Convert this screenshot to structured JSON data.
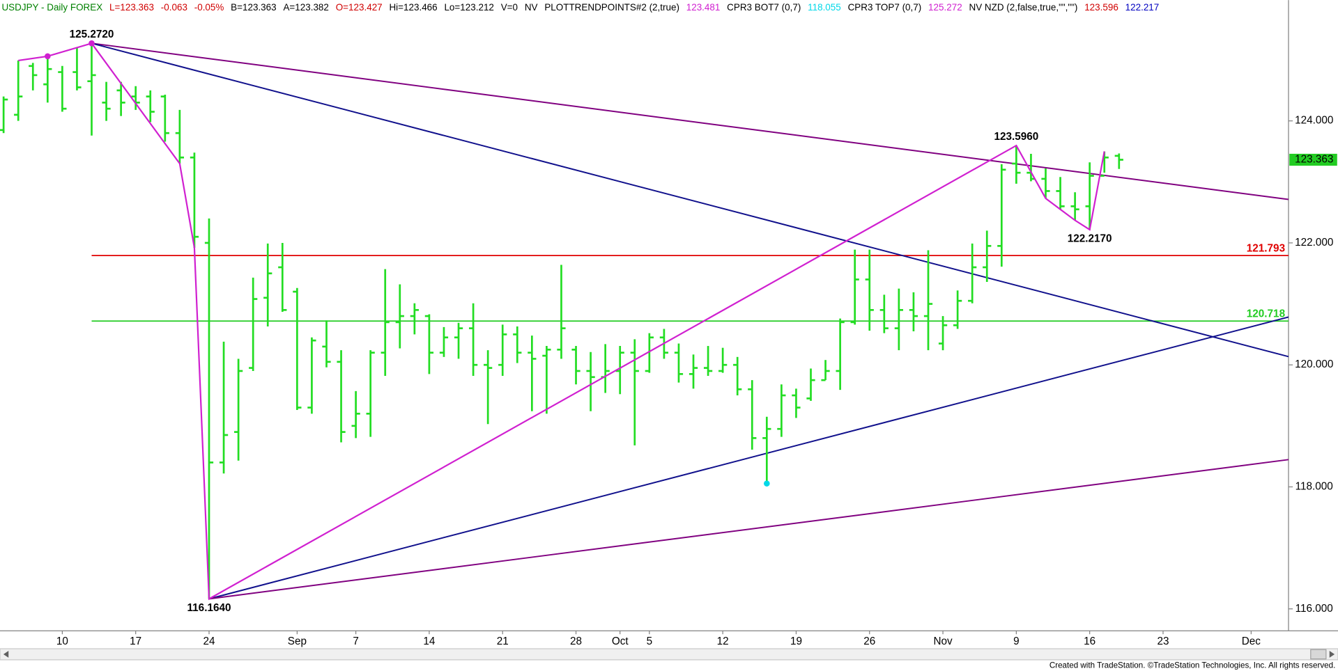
{
  "chart_data": {
    "type": "ohlc",
    "header": [
      {
        "text": "USDJPY - Daily  FOREX",
        "color": "#008000"
      },
      {
        "text": "L=123.363",
        "color": "#d00000"
      },
      {
        "text": "-0.063",
        "color": "#d00000"
      },
      {
        "text": "-0.05%",
        "color": "#d00000"
      },
      {
        "text": "B=123.363",
        "color": "#000000"
      },
      {
        "text": "A=123.382",
        "color": "#000000"
      },
      {
        "text": "O=123.427",
        "color": "#d00000"
      },
      {
        "text": "Hi=123.466",
        "color": "#000000"
      },
      {
        "text": "Lo=123.212",
        "color": "#000000"
      },
      {
        "text": "V=0",
        "color": "#000000"
      },
      {
        "text": "NV",
        "color": "#000000"
      },
      {
        "text": "PLOTTRENDPOINTS#2 (2,true)",
        "color": "#000000"
      },
      {
        "text": "123.481",
        "color": "#d020d0"
      },
      {
        "text": "CPR3 BOT7 (0,7)",
        "color": "#000000"
      },
      {
        "text": "118.055",
        "color": "#00d8e8"
      },
      {
        "text": "CPR3 TOP7 (0,7)",
        "color": "#000000"
      },
      {
        "text": "125.272",
        "color": "#d020d0"
      },
      {
        "text": "NV NZD (2,false,true,\"\",\"\")",
        "color": "#000000"
      },
      {
        "text": "123.596",
        "color": "#d00000"
      },
      {
        "text": "122.217",
        "color": "#0000c0"
      }
    ],
    "categories": [
      null,
      null,
      null,
      null,
      "10",
      null,
      null,
      null,
      null,
      "17",
      null,
      null,
      null,
      null,
      "24",
      null,
      null,
      null,
      null,
      null,
      "Sep",
      null,
      null,
      null,
      "7",
      null,
      null,
      null,
      null,
      "14",
      null,
      null,
      null,
      null,
      "21",
      null,
      null,
      null,
      null,
      "28",
      null,
      null,
      "Oct",
      null,
      "5",
      null,
      null,
      null,
      null,
      "12",
      null,
      null,
      null,
      null,
      "19",
      null,
      null,
      null,
      null,
      "26",
      null,
      null,
      null,
      null,
      "Nov",
      null,
      null,
      null,
      null,
      "9",
      null,
      null,
      null,
      null,
      "16",
      null,
      null,
      null,
      null,
      "23",
      null,
      null,
      null,
      null,
      null,
      "Dec",
      null,
      null
    ],
    "open": [
      123.85,
      124.1,
      124.9,
      124.6,
      124.8,
      124.8,
      124.65,
      124.3,
      124.5,
      124.4,
      124.4,
      124.4,
      123.8,
      123.4,
      122.0,
      118.4,
      118.9,
      119.95,
      121.1,
      121.6,
      121.2,
      119.3,
      120.3,
      120.05,
      119.0,
      119.2,
      120.2,
      120.7,
      120.8,
      120.8,
      120.2,
      120.45,
      120.6,
      120.0,
      120.0,
      120.5,
      120.2,
      120.15,
      120.25,
      120.25,
      119.9,
      119.8,
      119.9,
      120.2,
      119.9,
      120.45,
      120.2,
      119.85,
      119.95,
      119.9,
      120.0,
      119.6,
      118.8,
      118.95,
      119.5,
      119.45,
      119.75,
      119.9,
      120.7,
      121.4,
      120.9,
      120.6,
      120.9,
      120.8,
      120.35,
      120.65,
      121.05,
      121.6,
      121.95,
      123.3,
      123.15,
      123.05,
      122.85,
      122.6,
      122.6,
      123.1,
      123.427,
      null,
      null,
      null,
      null,
      null,
      null,
      null,
      null,
      null,
      null,
      null
    ],
    "high": [
      124.4,
      124.99,
      124.95,
      125.06,
      124.9,
      125.2,
      125.272,
      124.64,
      124.64,
      124.57,
      124.5,
      124.43,
      124.18,
      123.48,
      122.4,
      120.38,
      120.1,
      121.43,
      121.99,
      122.0,
      121.26,
      120.45,
      120.73,
      120.24,
      119.57,
      120.24,
      121.57,
      121.32,
      121.01,
      120.83,
      120.62,
      120.69,
      121.01,
      120.24,
      120.66,
      120.63,
      120.48,
      120.31,
      121.64,
      120.31,
      120.21,
      120.34,
      120.31,
      120.42,
      120.52,
      120.59,
      120.35,
      120.17,
      120.31,
      120.28,
      120.13,
      119.75,
      119.15,
      119.68,
      119.61,
      119.94,
      120.08,
      120.76,
      121.89,
      121.89,
      121.15,
      121.25,
      121.19,
      121.88,
      120.8,
      121.22,
      121.99,
      122.2,
      123.29,
      123.596,
      123.46,
      123.22,
      123.08,
      122.83,
      123.32,
      123.5,
      123.466,
      null,
      null,
      null,
      null,
      null,
      null,
      null,
      null,
      null,
      null,
      null
    ],
    "low": [
      123.8,
      124.0,
      124.5,
      124.3,
      124.15,
      124.5,
      123.76,
      124.0,
      124.08,
      124.18,
      123.98,
      123.66,
      123.3,
      121.92,
      116.164,
      118.22,
      118.43,
      119.9,
      120.63,
      120.87,
      119.26,
      119.2,
      119.96,
      118.73,
      118.8,
      118.82,
      119.82,
      120.27,
      120.5,
      119.85,
      120.13,
      120.1,
      119.82,
      119.03,
      119.82,
      120.03,
      119.24,
      119.2,
      120.1,
      119.68,
      119.24,
      119.54,
      119.52,
      118.68,
      119.87,
      120.1,
      119.71,
      119.61,
      119.82,
      119.87,
      119.5,
      118.61,
      118.055,
      118.82,
      119.13,
      119.41,
      119.75,
      119.59,
      120.66,
      120.56,
      120.52,
      120.24,
      120.55,
      120.24,
      120.24,
      120.59,
      121.01,
      121.36,
      121.61,
      122.97,
      123.01,
      122.73,
      122.55,
      122.37,
      122.217,
      123.15,
      123.212,
      null,
      null,
      null,
      null,
      null,
      null,
      null,
      null,
      null,
      null,
      null
    ],
    "close": [
      124.35,
      124.4,
      124.75,
      124.85,
      124.2,
      124.55,
      124.75,
      124.2,
      124.3,
      124.3,
      124.15,
      123.8,
      123.4,
      122.1,
      118.4,
      118.85,
      119.9,
      121.08,
      121.5,
      120.9,
      119.3,
      120.4,
      120.05,
      118.9,
      119.2,
      120.2,
      120.7,
      120.8,
      120.9,
      120.2,
      120.45,
      120.6,
      120.0,
      119.95,
      120.5,
      120.2,
      120.1,
      120.25,
      120.6,
      119.9,
      119.8,
      119.9,
      120.2,
      119.9,
      120.45,
      120.2,
      119.85,
      119.95,
      119.9,
      120.0,
      119.6,
      118.8,
      118.95,
      119.5,
      119.3,
      119.75,
      119.9,
      120.7,
      121.4,
      120.9,
      120.6,
      120.9,
      120.8,
      121.0,
      120.65,
      121.05,
      121.6,
      121.95,
      123.2,
      123.15,
      123.05,
      122.85,
      122.6,
      122.55,
      123.1,
      123.4,
      123.363,
      null,
      null,
      null,
      null,
      null,
      null,
      null,
      null,
      null,
      null,
      null
    ],
    "color": "#22dd22",
    "ylim": [
      115.64,
      125.98
    ],
    "yticks": [
      {
        "value": 116,
        "label": "116.000"
      },
      {
        "value": 118,
        "label": "118.000"
      },
      {
        "value": 120,
        "label": "120.000"
      },
      {
        "value": 122,
        "label": "122.000"
      },
      {
        "value": 124,
        "label": "124.000"
      }
    ],
    "last_price": 123.363,
    "last_price_color": "#22cc22",
    "hlines": [
      {
        "value": 121.793,
        "color": "#e00000"
      },
      {
        "value": 120.718,
        "color": "#22cc22"
      }
    ],
    "pivots": [
      {
        "value": 125.272,
        "label": "125.2720"
      },
      {
        "value": 116.164,
        "label": "116.1640"
      },
      {
        "value": 123.596,
        "label": "123.5960"
      },
      {
        "value": 122.217,
        "label": "122.2170"
      }
    ],
    "zigzag": [
      124.99,
      125.06,
      125.272,
      123.3,
      121.92,
      116.164,
      123.596,
      122.73,
      122.37,
      122.217,
      123.5
    ],
    "zigzag_color": "#d020d0",
    "trendlines": [
      {
        "from": 125.272,
        "end": 122.73,
        "color": "#800080"
      },
      {
        "from": 125.272,
        "end": 120.17,
        "color": "#10108c"
      },
      {
        "from": 116.164,
        "end": 120.75,
        "color": "#10108c"
      },
      {
        "from": 116.164,
        "end": 118.43,
        "color": "#800080"
      }
    ],
    "dots": [
      {
        "value": 125.06,
        "color": "#d020d0"
      },
      {
        "value": 125.272,
        "color": "#d020d0"
      },
      {
        "value": 118.055,
        "color": "#00d8e8"
      }
    ]
  },
  "footer": "Created with TradeStation. ©TradeStation Technologies, Inc. All rights reserved."
}
